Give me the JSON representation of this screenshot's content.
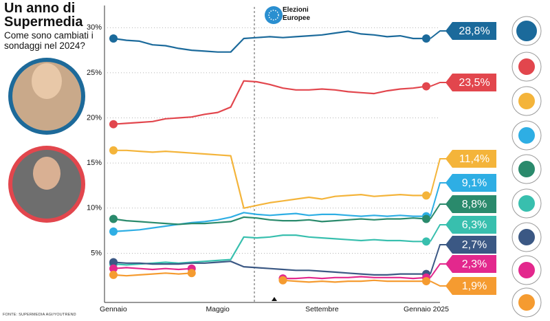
{
  "chart_data": {
    "type": "line",
    "title": "Un anno di Supermedia",
    "subtitle": "Come sono cambiati i sondaggi nel 2024?",
    "source": "FONTE: SUPERMEDIA AGI/YOUTREND",
    "annotation": "Elezioni Europee",
    "categories": [
      "Gennaio",
      null,
      null,
      null,
      null,
      null,
      null,
      null,
      "Maggio",
      null,
      null,
      null,
      null,
      null,
      null,
      null,
      "Settembre",
      null,
      null,
      null,
      null,
      null,
      null,
      null,
      "Gennaio 2025"
    ],
    "ylim": [
      0,
      32
    ],
    "yticks": [
      {
        "value": 5,
        "label": "5%"
      },
      {
        "value": 10,
        "label": "10%"
      },
      {
        "value": 15,
        "label": "15%"
      },
      {
        "value": 20,
        "label": "20%"
      },
      {
        "value": 25,
        "label": "25%"
      },
      {
        "value": 30,
        "label": "30%"
      }
    ],
    "grid": true,
    "series": [
      {
        "color": "#1b6a9b",
        "values": [
          28.8,
          28.6,
          28.5,
          28.1,
          28.0,
          27.7,
          27.5,
          27.4,
          27.3,
          27.3,
          28.8,
          28.9,
          29.0,
          28.9,
          29.0,
          29.1,
          29.2,
          29.4,
          29.6,
          29.3,
          29.2,
          29.0,
          29.1,
          28.8,
          28.8
        ],
        "value_labels": [
          null,
          null,
          null,
          null,
          null,
          null,
          null,
          null,
          null,
          null,
          null,
          null,
          null,
          null,
          null,
          null,
          null,
          null,
          null,
          null,
          null,
          null,
          null,
          null,
          "28,8%"
        ]
      },
      {
        "color": "#e2464d",
        "values": [
          19.3,
          19.4,
          19.5,
          19.6,
          19.9,
          20.0,
          20.1,
          20.4,
          20.6,
          21.2,
          24.1,
          24.0,
          23.7,
          23.3,
          23.1,
          23.1,
          23.2,
          23.1,
          22.9,
          22.8,
          22.7,
          23.0,
          23.2,
          23.3,
          23.5
        ],
        "value_labels": [
          null,
          null,
          null,
          null,
          null,
          null,
          null,
          null,
          null,
          null,
          null,
          null,
          null,
          null,
          null,
          null,
          null,
          null,
          null,
          null,
          null,
          null,
          null,
          null,
          "23,5%"
        ]
      },
      {
        "color": "#f4b43a",
        "values": [
          16.4,
          16.4,
          16.3,
          16.2,
          16.3,
          16.2,
          16.1,
          16.0,
          15.9,
          15.8,
          10.0,
          10.3,
          10.6,
          10.8,
          11.0,
          11.2,
          11.0,
          11.3,
          11.4,
          11.5,
          11.3,
          11.4,
          11.5,
          11.4,
          11.4
        ],
        "value_labels": [
          null,
          null,
          null,
          null,
          null,
          null,
          null,
          null,
          null,
          null,
          null,
          null,
          null,
          null,
          null,
          null,
          null,
          null,
          null,
          null,
          null,
          null,
          null,
          null,
          "11,4%"
        ]
      },
      {
        "color": "#2eaee4",
        "values": [
          7.4,
          7.5,
          7.6,
          7.8,
          8.0,
          8.2,
          8.4,
          8.5,
          8.7,
          9.0,
          9.5,
          9.3,
          9.2,
          9.3,
          9.4,
          9.2,
          9.3,
          9.3,
          9.2,
          9.1,
          9.2,
          9.1,
          9.2,
          9.1,
          9.1
        ],
        "value_labels": [
          null,
          null,
          null,
          null,
          null,
          null,
          null,
          null,
          null,
          null,
          null,
          null,
          null,
          null,
          null,
          null,
          null,
          null,
          null,
          null,
          null,
          null,
          null,
          null,
          "9,1%"
        ]
      },
      {
        "color": "#2a8a6c",
        "values": [
          8.8,
          8.6,
          8.5,
          8.4,
          8.3,
          8.2,
          8.3,
          8.3,
          8.4,
          8.5,
          9.0,
          8.9,
          8.7,
          8.6,
          8.6,
          8.7,
          8.5,
          8.6,
          8.7,
          8.8,
          8.7,
          8.8,
          8.8,
          8.9,
          8.8
        ],
        "value_labels": [
          null,
          null,
          null,
          null,
          null,
          null,
          null,
          null,
          null,
          null,
          null,
          null,
          null,
          null,
          null,
          null,
          null,
          null,
          null,
          null,
          null,
          null,
          null,
          null,
          "8,8%"
        ]
      },
      {
        "color": "#38bfae",
        "values": [
          3.8,
          3.7,
          3.8,
          3.9,
          4.0,
          3.9,
          4.0,
          4.1,
          4.2,
          4.3,
          6.8,
          6.7,
          6.8,
          7.0,
          7.0,
          6.8,
          6.7,
          6.6,
          6.5,
          6.4,
          6.5,
          6.4,
          6.4,
          6.3,
          6.3
        ],
        "value_labels": [
          null,
          null,
          null,
          null,
          null,
          null,
          null,
          null,
          null,
          null,
          null,
          null,
          null,
          null,
          null,
          null,
          null,
          null,
          null,
          null,
          null,
          null,
          null,
          null,
          "6,3%"
        ]
      },
      {
        "color": "#3b5884",
        "values": [
          4.0,
          3.9,
          3.9,
          3.8,
          3.8,
          3.8,
          3.9,
          3.9,
          4.0,
          4.1,
          3.5,
          3.4,
          3.3,
          3.2,
          3.1,
          3.1,
          3.0,
          2.9,
          2.8,
          2.7,
          2.6,
          2.6,
          2.7,
          2.7,
          2.7
        ],
        "value_labels": [
          null,
          null,
          null,
          null,
          null,
          null,
          null,
          null,
          null,
          null,
          null,
          null,
          null,
          null,
          null,
          null,
          null,
          null,
          null,
          null,
          null,
          null,
          null,
          null,
          "2,7%"
        ]
      },
      {
        "color": "#e3288d",
        "values": [
          3.3,
          3.4,
          3.3,
          3.2,
          3.3,
          3.2,
          3.3,
          null,
          null,
          null,
          null,
          null,
          null,
          2.2,
          2.2,
          2.3,
          2.2,
          2.3,
          2.3,
          2.4,
          2.3,
          2.3,
          2.3,
          2.2,
          2.3
        ],
        "value_labels": [
          null,
          null,
          null,
          null,
          null,
          null,
          null,
          null,
          null,
          null,
          null,
          null,
          null,
          null,
          null,
          null,
          null,
          null,
          null,
          null,
          null,
          null,
          null,
          null,
          "2,3%"
        ]
      },
      {
        "color": "#f59b30",
        "values": [
          2.6,
          2.5,
          2.6,
          2.7,
          2.8,
          2.7,
          2.8,
          null,
          null,
          null,
          null,
          null,
          null,
          2.0,
          1.9,
          1.8,
          1.9,
          1.8,
          1.9,
          1.9,
          2.0,
          1.9,
          1.9,
          1.9,
          1.9
        ],
        "value_labels": [
          null,
          null,
          null,
          null,
          null,
          null,
          null,
          null,
          null,
          null,
          null,
          null,
          null,
          null,
          null,
          null,
          null,
          null,
          null,
          null,
          null,
          null,
          null,
          null,
          "1,9%"
        ]
      }
    ]
  }
}
